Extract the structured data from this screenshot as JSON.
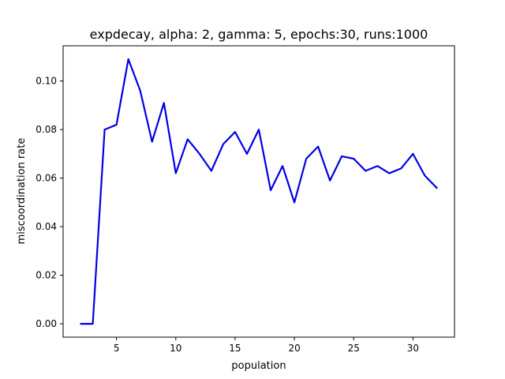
{
  "chart_data": {
    "type": "line",
    "title": "expdecay, alpha: 2, gamma: 5, epochs:30, runs:1000",
    "xlabel": "population",
    "ylabel": "miscoordination rate",
    "xlim": [
      0.5,
      33.5
    ],
    "ylim": [
      -0.0055,
      0.1145
    ],
    "xticks": [
      5,
      10,
      15,
      20,
      25,
      30
    ],
    "xtick_labels": [
      "5",
      "10",
      "15",
      "20",
      "25",
      "30"
    ],
    "yticks": [
      0.0,
      0.02,
      0.04,
      0.06,
      0.08,
      0.1
    ],
    "ytick_labels": [
      "0.00",
      "0.02",
      "0.04",
      "0.06",
      "0.08",
      "0.10"
    ],
    "grid": false,
    "series": [
      {
        "color": "#0000e6",
        "x": [
          2,
          3,
          4,
          5,
          6,
          7,
          8,
          9,
          10,
          11,
          12,
          13,
          14,
          15,
          16,
          17,
          18,
          19,
          20,
          21,
          22,
          23,
          24,
          25,
          26,
          27,
          28,
          29,
          30,
          31,
          32
        ],
        "values": [
          0.0,
          0.0,
          0.08,
          0.082,
          0.109,
          0.096,
          0.075,
          0.091,
          0.062,
          0.076,
          0.07,
          0.063,
          0.074,
          0.079,
          0.07,
          0.08,
          0.055,
          0.065,
          0.05,
          0.068,
          0.073,
          0.059,
          0.069,
          0.068,
          0.063,
          0.065,
          0.062,
          0.064,
          0.07,
          0.061,
          0.056
        ]
      }
    ]
  }
}
